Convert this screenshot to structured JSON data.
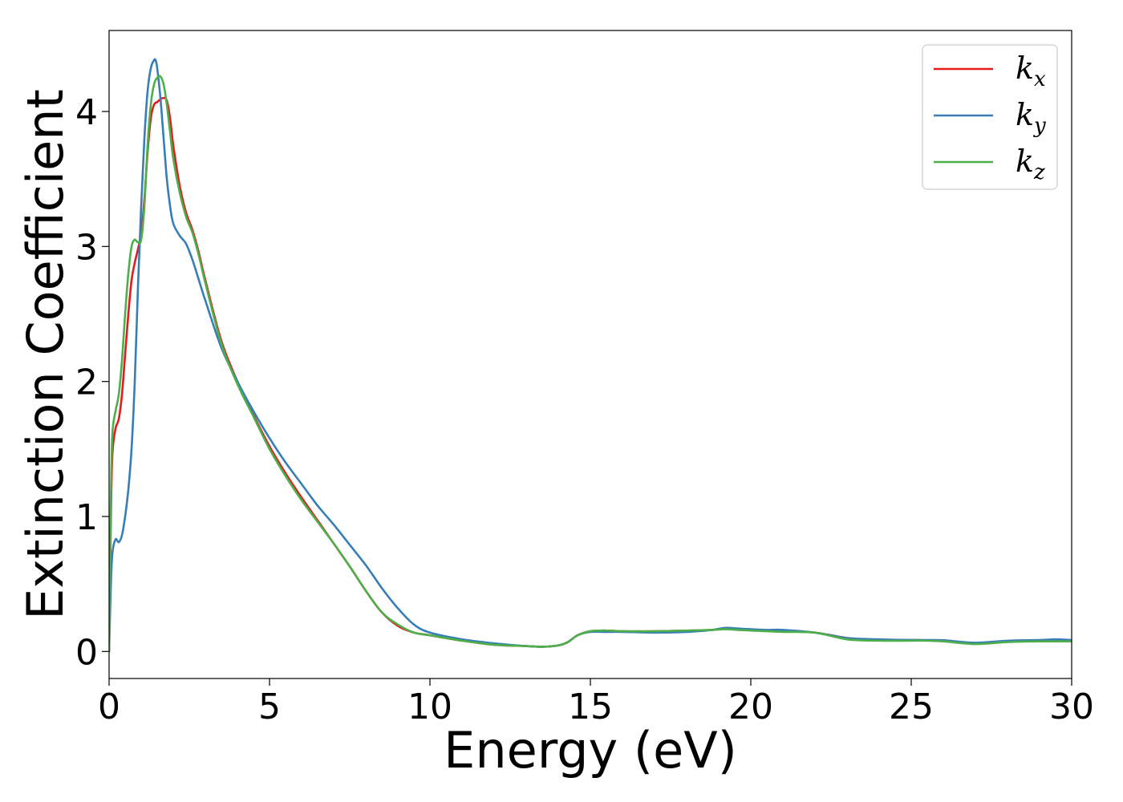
{
  "chart_data": {
    "type": "line",
    "xlabel": "Energy (eV)",
    "ylabel": "Extinction Coefficient",
    "xlim": [
      0,
      30
    ],
    "ylim": [
      -0.2,
      4.6
    ],
    "xticks": [
      0,
      5,
      10,
      15,
      20,
      25,
      30
    ],
    "yticks": [
      0,
      1,
      2,
      3,
      4
    ],
    "grid": false,
    "legend_position": "top-right",
    "series": [
      {
        "name": "kx",
        "name_base": "k",
        "name_sub": "x",
        "color": "#e41a1c",
        "x": [
          0,
          0.05,
          0.1,
          0.2,
          0.3,
          0.4,
          0.5,
          0.6,
          0.7,
          0.8,
          0.9,
          1.0,
          1.1,
          1.2,
          1.3,
          1.4,
          1.5,
          1.6,
          1.7,
          1.8,
          1.9,
          2.0,
          2.2,
          2.4,
          2.6,
          2.8,
          3.0,
          3.5,
          4.0,
          4.5,
          5.0,
          5.5,
          6.0,
          6.5,
          7.0,
          7.5,
          8.0,
          8.5,
          9.0,
          9.5,
          10.0,
          11.0,
          12.0,
          13.0,
          13.5,
          14.0,
          14.3,
          14.6,
          15.0,
          15.5,
          16.0,
          17.0,
          18.0,
          18.8,
          19.2,
          19.6,
          20.0,
          20.5,
          21.0,
          22.0,
          23.0,
          24.0,
          25.0,
          25.5,
          26.0,
          27.0,
          28.0,
          29.0,
          30.0
        ],
        "y": [
          0.0,
          0.9,
          1.45,
          1.65,
          1.72,
          1.9,
          2.2,
          2.5,
          2.75,
          2.88,
          2.98,
          3.1,
          3.35,
          3.7,
          3.95,
          4.05,
          4.07,
          4.09,
          4.1,
          4.08,
          3.95,
          3.75,
          3.45,
          3.25,
          3.12,
          2.95,
          2.75,
          2.3,
          2.0,
          1.75,
          1.52,
          1.32,
          1.14,
          0.97,
          0.8,
          0.63,
          0.45,
          0.29,
          0.19,
          0.14,
          0.12,
          0.08,
          0.05,
          0.04,
          0.035,
          0.045,
          0.07,
          0.12,
          0.15,
          0.155,
          0.15,
          0.15,
          0.155,
          0.16,
          0.17,
          0.165,
          0.16,
          0.155,
          0.15,
          0.14,
          0.1,
          0.085,
          0.085,
          0.083,
          0.08,
          0.06,
          0.075,
          0.08,
          0.08
        ]
      },
      {
        "name": "ky",
        "name_base": "k",
        "name_sub": "y",
        "color": "#377eb8",
        "x": [
          0,
          0.05,
          0.1,
          0.2,
          0.3,
          0.4,
          0.5,
          0.6,
          0.7,
          0.8,
          0.9,
          1.0,
          1.1,
          1.2,
          1.3,
          1.4,
          1.45,
          1.5,
          1.6,
          1.7,
          1.8,
          1.9,
          2.0,
          2.2,
          2.4,
          2.6,
          2.8,
          3.0,
          3.5,
          4.0,
          4.5,
          5.0,
          5.5,
          6.0,
          6.5,
          7.0,
          7.5,
          8.0,
          8.5,
          9.0,
          9.5,
          10.0,
          11.0,
          12.0,
          13.0,
          13.5,
          14.0,
          14.3,
          14.6,
          15.0,
          15.5,
          16.0,
          17.0,
          18.0,
          18.8,
          19.2,
          19.6,
          20.0,
          20.5,
          21.0,
          22.0,
          23.0,
          24.0,
          25.0,
          25.5,
          26.0,
          27.0,
          28.0,
          29.0,
          29.5,
          30.0
        ],
        "y": [
          0.0,
          0.45,
          0.72,
          0.83,
          0.81,
          0.86,
          1.0,
          1.2,
          1.5,
          2.0,
          2.7,
          3.3,
          3.8,
          4.15,
          4.32,
          4.38,
          4.38,
          4.32,
          4.1,
          3.8,
          3.5,
          3.3,
          3.17,
          3.08,
          3.02,
          2.9,
          2.75,
          2.6,
          2.25,
          2.0,
          1.78,
          1.58,
          1.4,
          1.24,
          1.08,
          0.94,
          0.79,
          0.64,
          0.47,
          0.32,
          0.2,
          0.14,
          0.09,
          0.06,
          0.04,
          0.035,
          0.045,
          0.07,
          0.12,
          0.145,
          0.145,
          0.145,
          0.14,
          0.145,
          0.16,
          0.175,
          0.17,
          0.165,
          0.16,
          0.16,
          0.14,
          0.1,
          0.09,
          0.085,
          0.085,
          0.083,
          0.065,
          0.08,
          0.085,
          0.09,
          0.085
        ]
      },
      {
        "name": "kz",
        "name_base": "k",
        "name_sub": "z",
        "color": "#4daf4a",
        "x": [
          0,
          0.05,
          0.1,
          0.2,
          0.3,
          0.4,
          0.5,
          0.6,
          0.7,
          0.8,
          0.9,
          1.0,
          1.1,
          1.2,
          1.3,
          1.4,
          1.5,
          1.6,
          1.7,
          1.8,
          1.9,
          2.0,
          2.2,
          2.4,
          2.6,
          2.8,
          3.0,
          3.5,
          4.0,
          4.5,
          5.0,
          5.5,
          6.0,
          6.5,
          7.0,
          7.5,
          8.0,
          8.5,
          9.0,
          9.5,
          10.0,
          11.0,
          12.0,
          13.0,
          13.5,
          14.0,
          14.3,
          14.6,
          15.0,
          15.5,
          16.0,
          17.0,
          18.0,
          18.8,
          19.2,
          19.6,
          20.0,
          20.5,
          21.0,
          22.0,
          23.0,
          24.0,
          25.0,
          25.5,
          26.0,
          27.0,
          28.0,
          29.0,
          30.0
        ],
        "y": [
          0.0,
          1.05,
          1.6,
          1.78,
          1.9,
          2.15,
          2.5,
          2.8,
          3.0,
          3.05,
          3.03,
          3.05,
          3.3,
          3.75,
          4.05,
          4.2,
          4.25,
          4.26,
          4.2,
          4.05,
          3.85,
          3.65,
          3.4,
          3.22,
          3.1,
          2.93,
          2.73,
          2.28,
          1.98,
          1.74,
          1.5,
          1.3,
          1.12,
          0.96,
          0.8,
          0.63,
          0.45,
          0.29,
          0.2,
          0.14,
          0.12,
          0.08,
          0.05,
          0.04,
          0.035,
          0.045,
          0.07,
          0.12,
          0.15,
          0.155,
          0.15,
          0.15,
          0.155,
          0.16,
          0.165,
          0.16,
          0.155,
          0.15,
          0.145,
          0.14,
          0.09,
          0.08,
          0.08,
          0.08,
          0.075,
          0.055,
          0.07,
          0.075,
          0.075
        ]
      }
    ]
  }
}
